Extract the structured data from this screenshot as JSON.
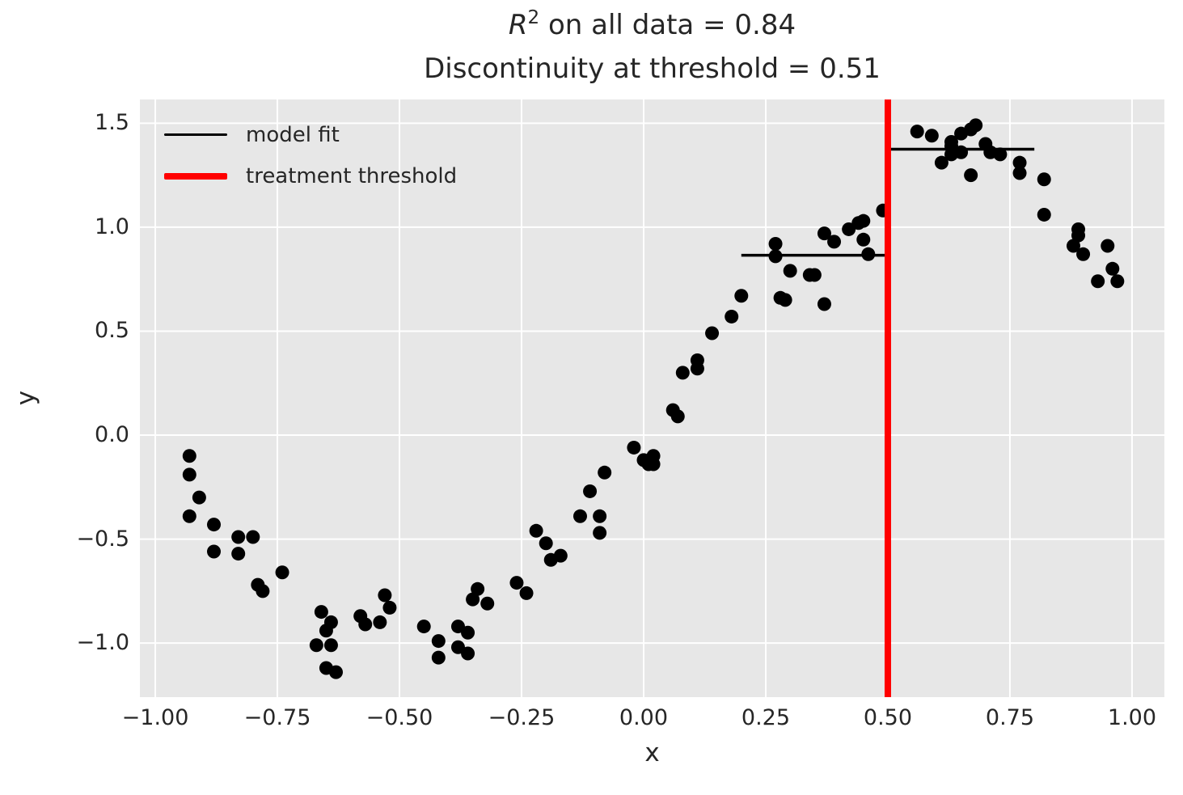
{
  "figure": {
    "titles": {
      "line1_r": "R",
      "line1_sup": "2",
      "line1_rest": " on all data = 0.84",
      "line2": "Discontinuity at threshold = 0.51"
    },
    "axes_labels": {
      "x": "x",
      "y": "y"
    }
  },
  "legend": {
    "position": "upper left",
    "items": [
      {
        "label": "model fit",
        "color": "#000000",
        "line_width": 3.5
      },
      {
        "label": "treatment threshold",
        "color": "#ff0000",
        "line_width": 8
      }
    ]
  },
  "chart_data": {
    "type": "scatter",
    "title": "R^2 on all data = 0.84\nDiscontinuity at threshold = 0.51",
    "xlabel": "x",
    "ylabel": "y",
    "grid": true,
    "axes_bg": "#e7e7e7",
    "grid_color": "#ffffff",
    "text_color": "#262626",
    "xlim": [
      -1.0315,
      1.0663
    ],
    "ylim": [
      -1.26,
      1.614
    ],
    "x_ticks": [
      {
        "v": -1.0,
        "label": "−1.00"
      },
      {
        "v": -0.75,
        "label": "−0.75"
      },
      {
        "v": -0.5,
        "label": "−0.50"
      },
      {
        "v": -0.25,
        "label": "−0.25"
      },
      {
        "v": 0.0,
        "label": "0.00"
      },
      {
        "v": 0.25,
        "label": "0.25"
      },
      {
        "v": 0.5,
        "label": "0.50"
      },
      {
        "v": 0.75,
        "label": "0.75"
      },
      {
        "v": 1.0,
        "label": "1.00"
      }
    ],
    "y_ticks": [
      {
        "v": -1.0,
        "label": "−1.0"
      },
      {
        "v": -0.5,
        "label": "−0.5"
      },
      {
        "v": 0.0,
        "label": "0.0"
      },
      {
        "v": 0.5,
        "label": "0.5"
      },
      {
        "v": 1.0,
        "label": "1.0"
      },
      {
        "v": 1.5,
        "label": "1.5"
      }
    ],
    "marker": {
      "color": "#000000",
      "radius": 8.5
    },
    "fit_color": "#000000",
    "fit_line_width": 3.5,
    "fit_segments": [
      {
        "x0": 0.2,
        "x1": 0.5,
        "y": 0.865
      },
      {
        "x0": 0.5,
        "x1": 0.8,
        "y": 1.375
      }
    ],
    "threshold": {
      "x": 0.5,
      "color": "#ff0000",
      "width": 8
    },
    "points": [
      [
        -0.93,
        -0.1
      ],
      [
        -0.93,
        -0.19
      ],
      [
        -0.93,
        -0.39
      ],
      [
        -0.91,
        -0.3
      ],
      [
        -0.88,
        -0.43
      ],
      [
        -0.88,
        -0.56
      ],
      [
        -0.83,
        -0.49
      ],
      [
        -0.83,
        -0.57
      ],
      [
        -0.8,
        -0.49
      ],
      [
        -0.79,
        -0.72
      ],
      [
        -0.78,
        -0.75
      ],
      [
        -0.74,
        -0.66
      ],
      [
        -0.67,
        -1.01
      ],
      [
        -0.66,
        -0.85
      ],
      [
        -0.65,
        -0.94
      ],
      [
        -0.65,
        -1.12
      ],
      [
        -0.64,
        -0.9
      ],
      [
        -0.64,
        -1.01
      ],
      [
        -0.63,
        -1.14
      ],
      [
        -0.58,
        -0.87
      ],
      [
        -0.57,
        -0.91
      ],
      [
        -0.54,
        -0.9
      ],
      [
        -0.53,
        -0.77
      ],
      [
        -0.52,
        -0.83
      ],
      [
        -0.45,
        -0.92
      ],
      [
        -0.42,
        -0.99
      ],
      [
        -0.42,
        -1.07
      ],
      [
        -0.38,
        -0.92
      ],
      [
        -0.38,
        -1.02
      ],
      [
        -0.36,
        -0.95
      ],
      [
        -0.36,
        -1.05
      ],
      [
        -0.35,
        -0.79
      ],
      [
        -0.34,
        -0.74
      ],
      [
        -0.32,
        -0.81
      ],
      [
        -0.26,
        -0.71
      ],
      [
        -0.24,
        -0.76
      ],
      [
        -0.22,
        -0.46
      ],
      [
        -0.2,
        -0.52
      ],
      [
        -0.19,
        -0.6
      ],
      [
        -0.17,
        -0.58
      ],
      [
        -0.13,
        -0.39
      ],
      [
        -0.11,
        -0.27
      ],
      [
        -0.09,
        -0.39
      ],
      [
        -0.09,
        -0.47
      ],
      [
        -0.08,
        -0.18
      ],
      [
        -0.02,
        -0.06
      ],
      [
        0.0,
        -0.12
      ],
      [
        0.01,
        -0.14
      ],
      [
        0.02,
        -0.1
      ],
      [
        0.02,
        -0.14
      ],
      [
        0.06,
        0.12
      ],
      [
        0.07,
        0.09
      ],
      [
        0.08,
        0.3
      ],
      [
        0.11,
        0.32
      ],
      [
        0.11,
        0.36
      ],
      [
        0.14,
        0.49
      ],
      [
        0.18,
        0.57
      ],
      [
        0.2,
        0.67
      ],
      [
        0.27,
        0.86
      ],
      [
        0.27,
        0.92
      ],
      [
        0.28,
        0.66
      ],
      [
        0.29,
        0.65
      ],
      [
        0.3,
        0.79
      ],
      [
        0.34,
        0.77
      ],
      [
        0.35,
        0.77
      ],
      [
        0.37,
        0.63
      ],
      [
        0.37,
        0.97
      ],
      [
        0.39,
        0.93
      ],
      [
        0.42,
        0.99
      ],
      [
        0.44,
        1.02
      ],
      [
        0.45,
        0.94
      ],
      [
        0.45,
        1.03
      ],
      [
        0.46,
        0.87
      ],
      [
        0.49,
        1.08
      ],
      [
        0.56,
        1.46
      ],
      [
        0.59,
        1.44
      ],
      [
        0.61,
        1.31
      ],
      [
        0.63,
        1.35
      ],
      [
        0.63,
        1.39
      ],
      [
        0.63,
        1.41
      ],
      [
        0.65,
        1.36
      ],
      [
        0.65,
        1.45
      ],
      [
        0.67,
        1.25
      ],
      [
        0.67,
        1.47
      ],
      [
        0.68,
        1.49
      ],
      [
        0.7,
        1.4
      ],
      [
        0.71,
        1.36
      ],
      [
        0.73,
        1.35
      ],
      [
        0.77,
        1.26
      ],
      [
        0.77,
        1.31
      ],
      [
        0.82,
        1.06
      ],
      [
        0.82,
        1.23
      ],
      [
        0.88,
        0.91
      ],
      [
        0.89,
        0.96
      ],
      [
        0.89,
        0.99
      ],
      [
        0.9,
        0.87
      ],
      [
        0.93,
        0.74
      ],
      [
        0.95,
        0.91
      ],
      [
        0.96,
        0.8
      ],
      [
        0.97,
        0.74
      ]
    ]
  }
}
